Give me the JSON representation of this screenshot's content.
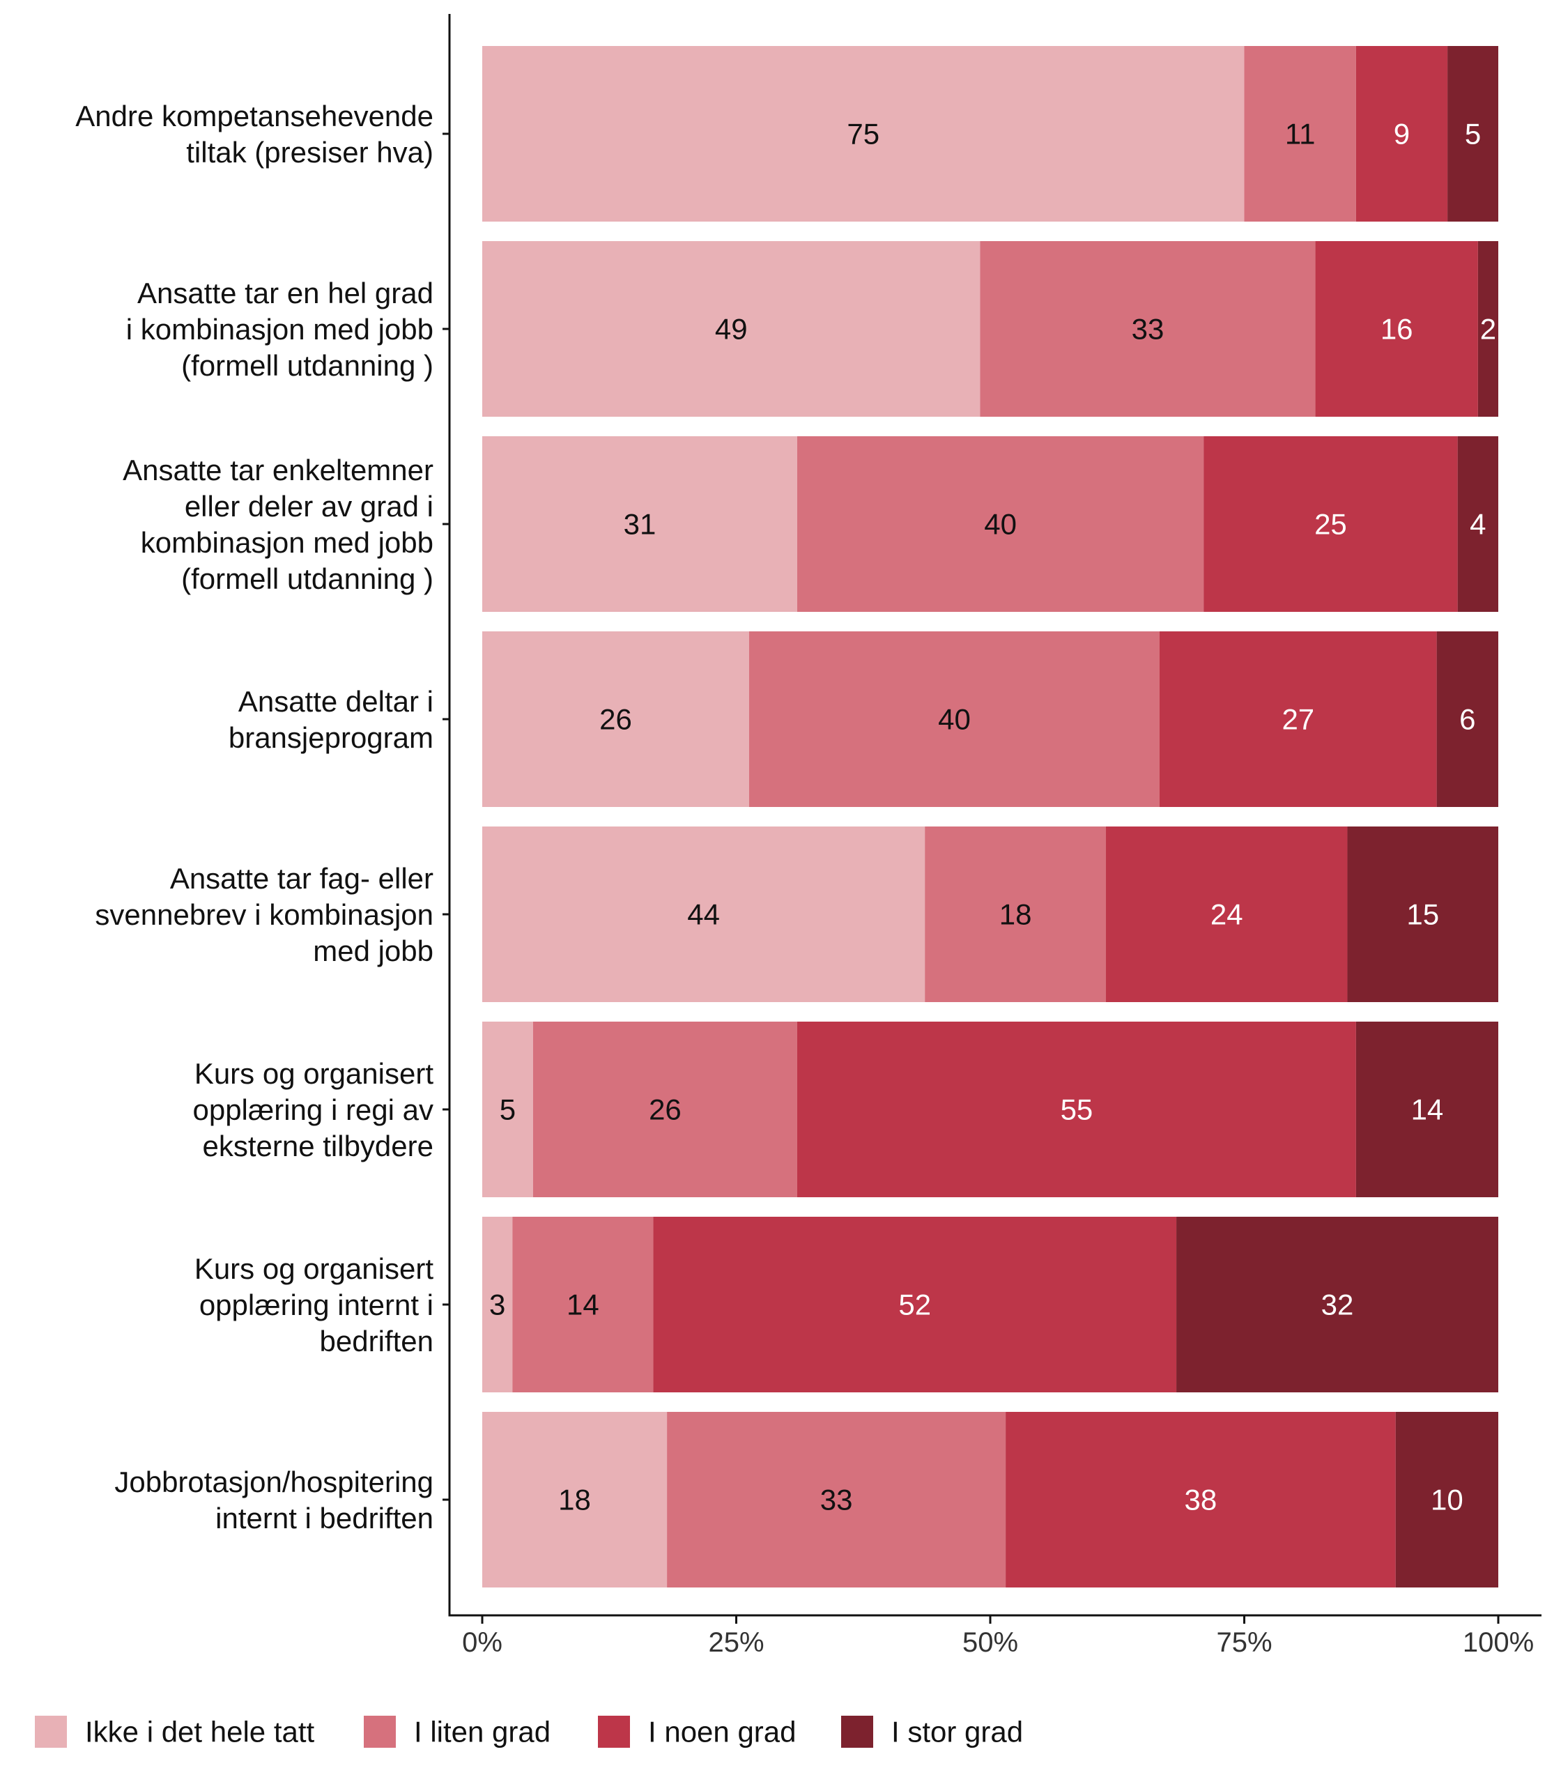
{
  "chart_data": {
    "type": "bar",
    "orientation": "horizontal",
    "stacked": true,
    "normalized_percent": true,
    "categories": [
      [
        "Andre kompetansehevende",
        "tiltak (presiser hva)"
      ],
      [
        "Ansatte tar en hel grad",
        "i kombinasjon med jobb",
        "(formell utdanning )"
      ],
      [
        "Ansatte tar enkeltemner",
        "eller deler av grad i",
        "kombinasjon med jobb",
        "(formell utdanning )"
      ],
      [
        "Ansatte deltar i",
        "bransjeprogram"
      ],
      [
        "Ansatte tar fag- eller",
        "svennebrev i kombinasjon",
        "med jobb"
      ],
      [
        "Kurs og organisert",
        "opplæring i regi av",
        "eksterne tilbydere"
      ],
      [
        "Kurs og organisert",
        "opplæring internt i",
        "bedriften"
      ],
      [
        "Jobbrotasjon/hospitering",
        "internt i bedriften"
      ]
    ],
    "series": [
      {
        "name": "Ikke i det hele tatt",
        "color": "#E8B1B6",
        "label_color": "#111111",
        "values": [
          75,
          49,
          31,
          26,
          44,
          5,
          3,
          18
        ]
      },
      {
        "name": "I liten grad",
        "color": "#D6717D",
        "label_color": "#111111",
        "values": [
          11,
          33,
          40,
          40,
          18,
          26,
          14,
          33
        ]
      },
      {
        "name": "I noen grad",
        "color": "#BD3649",
        "label_color": "#FFFFFF",
        "values": [
          9,
          16,
          25,
          27,
          24,
          55,
          52,
          38
        ]
      },
      {
        "name": "I stor grad",
        "color": "#7D222E",
        "label_color": "#FFFFFF",
        "values": [
          5,
          2,
          4,
          6,
          15,
          14,
          32,
          10
        ]
      }
    ],
    "x_ticks": [
      "0%",
      "25%",
      "50%",
      "75%",
      "100%"
    ],
    "xlim": [
      0,
      100
    ],
    "xlabel": "",
    "ylabel": "",
    "grid": false,
    "legend_position": "bottom"
  }
}
